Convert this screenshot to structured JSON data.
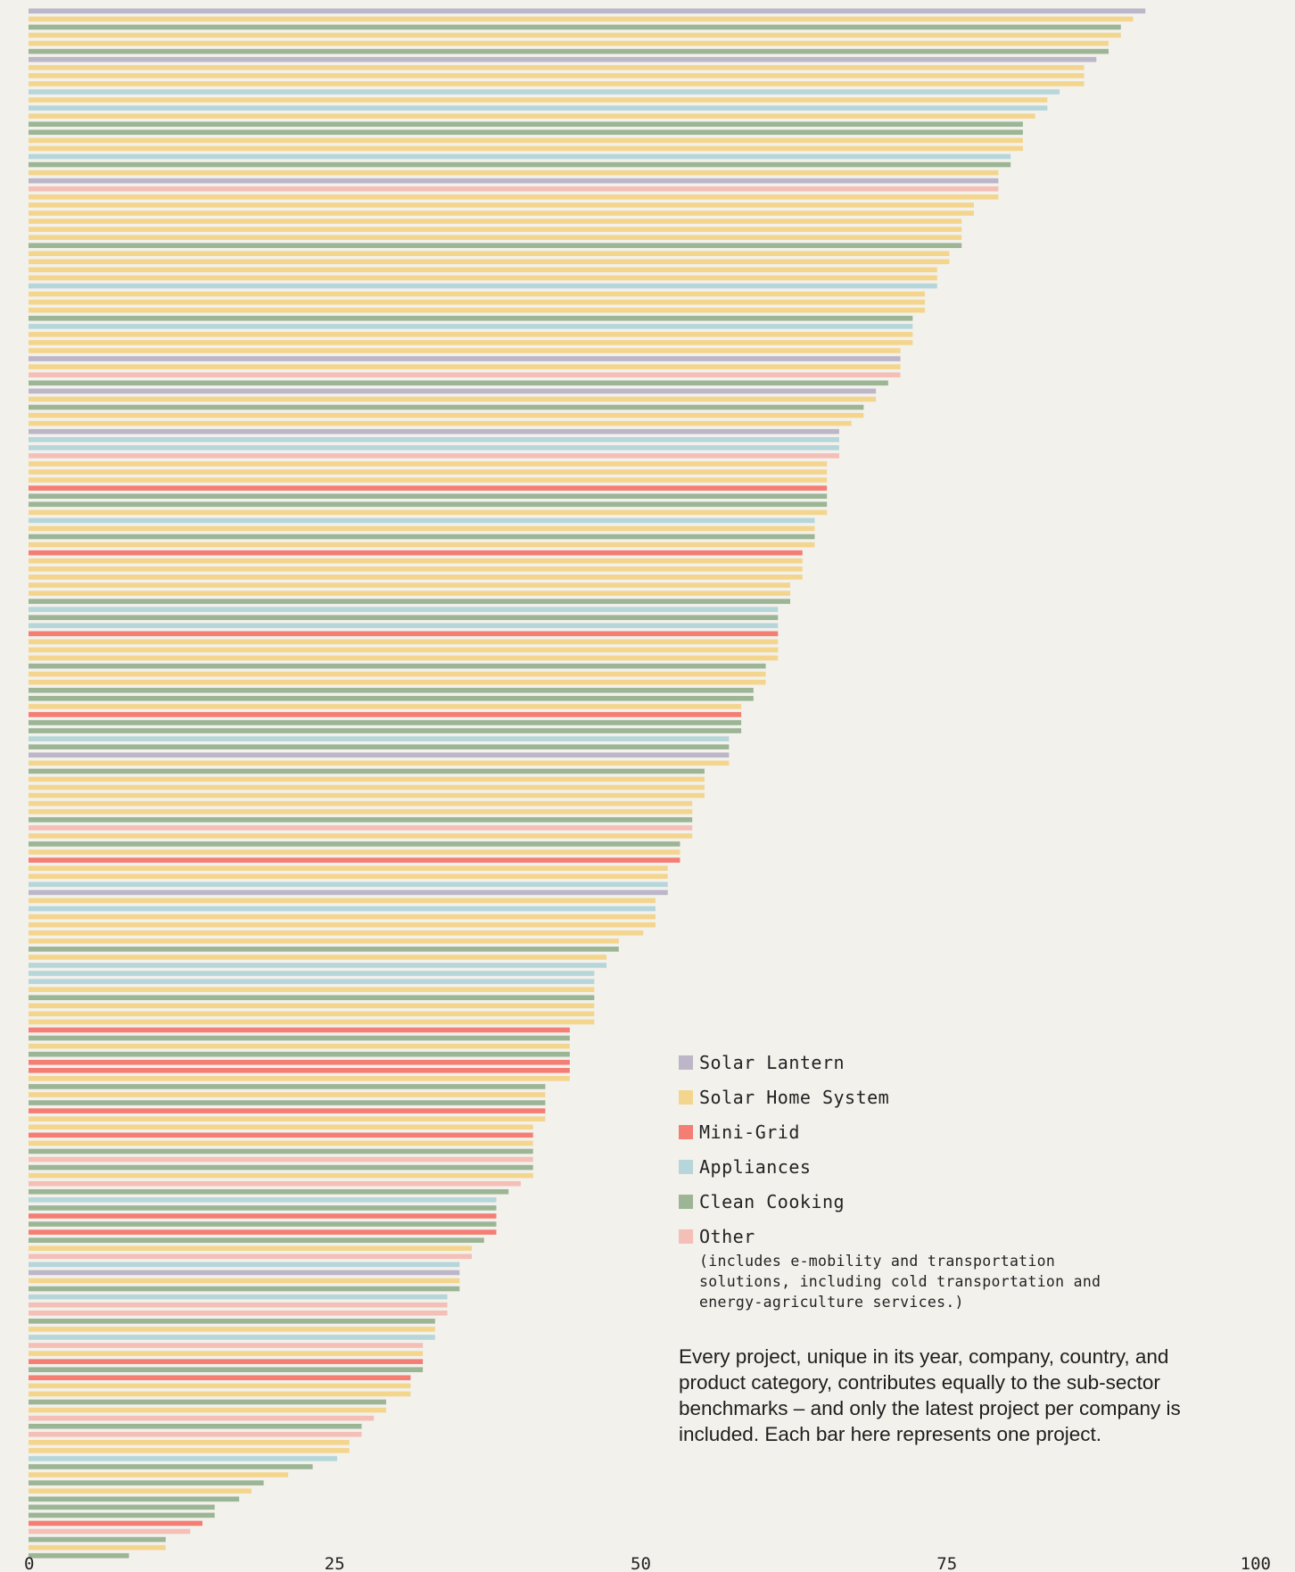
{
  "chart_data": {
    "type": "bar",
    "orientation": "horizontal",
    "title": "",
    "xlabel": "",
    "ylabel": "",
    "xlim": [
      0,
      100
    ],
    "x_ticks": [
      "0",
      "25",
      "50",
      "75",
      "100"
    ],
    "x_tick_values": [
      0,
      25,
      50,
      75,
      100
    ],
    "grid": false,
    "legend_position": "bottom-right",
    "categories": [
      {
        "name": "Solar Lantern",
        "key": "SL",
        "color": "#bcb6c8"
      },
      {
        "name": "Solar Home System",
        "key": "SHS",
        "color": "#f4d58e"
      },
      {
        "name": "Mini-Grid",
        "key": "MG",
        "color": "#f47d74"
      },
      {
        "name": "Appliances",
        "key": "AP",
        "color": "#b7d6da"
      },
      {
        "name": "Clean Cooking",
        "key": "CC",
        "color": "#9cb595"
      },
      {
        "name": "Other",
        "key": "OT",
        "color": "#f4bfb6"
      }
    ],
    "other_note": "(includes e-mobility and transportation solutions, including cold transportation and energy-agriculture services.)",
    "bars": [
      [
        "SL",
        91.2
      ],
      [
        "SHS",
        90.2
      ],
      [
        "CC",
        89.2
      ],
      [
        "SHS",
        89.2
      ],
      [
        "SHS",
        88.2
      ],
      [
        "CC",
        88.2
      ],
      [
        "SL",
        87.2
      ],
      [
        "SHS",
        86.2
      ],
      [
        "SHS",
        86.2
      ],
      [
        "SHS",
        86.2
      ],
      [
        "AP",
        84.2
      ],
      [
        "SHS",
        83.2
      ],
      [
        "AP",
        83.2
      ],
      [
        "SHS",
        82.2
      ],
      [
        "CC",
        81.2
      ],
      [
        "CC",
        81.2
      ],
      [
        "SHS",
        81.2
      ],
      [
        "SHS",
        81.2
      ],
      [
        "AP",
        80.2
      ],
      [
        "CC",
        80.2
      ],
      [
        "SHS",
        79.2
      ],
      [
        "SL",
        79.2
      ],
      [
        "OT",
        79.2
      ],
      [
        "SHS",
        79.2
      ],
      [
        "SHS",
        77.2
      ],
      [
        "SHS",
        77.2
      ],
      [
        "SHS",
        76.2
      ],
      [
        "SHS",
        76.2
      ],
      [
        "SHS",
        76.2
      ],
      [
        "CC",
        76.2
      ],
      [
        "SHS",
        75.2
      ],
      [
        "SHS",
        75.2
      ],
      [
        "SHS",
        74.2
      ],
      [
        "SHS",
        74.2
      ],
      [
        "AP",
        74.2
      ],
      [
        "SHS",
        73.2
      ],
      [
        "SHS",
        73.2
      ],
      [
        "SHS",
        73.2
      ],
      [
        "CC",
        72.2
      ],
      [
        "AP",
        72.2
      ],
      [
        "SHS",
        72.2
      ],
      [
        "SHS",
        72.2
      ],
      [
        "SHS",
        71.2
      ],
      [
        "SL",
        71.2
      ],
      [
        "SHS",
        71.2
      ],
      [
        "OT",
        71.2
      ],
      [
        "CC",
        70.2
      ],
      [
        "SL",
        69.2
      ],
      [
        "SHS",
        69.2
      ],
      [
        "CC",
        68.2
      ],
      [
        "SHS",
        68.2
      ],
      [
        "SHS",
        67.2
      ],
      [
        "SL",
        66.2
      ],
      [
        "AP",
        66.2
      ],
      [
        "AP",
        66.2
      ],
      [
        "OT",
        66.2
      ],
      [
        "SHS",
        65.2
      ],
      [
        "SHS",
        65.2
      ],
      [
        "SHS",
        65.2
      ],
      [
        "MG",
        65.2
      ],
      [
        "CC",
        65.2
      ],
      [
        "CC",
        65.2
      ],
      [
        "SHS",
        65.2
      ],
      [
        "AP",
        64.2
      ],
      [
        "SHS",
        64.2
      ],
      [
        "CC",
        64.2
      ],
      [
        "SHS",
        64.2
      ],
      [
        "MG",
        63.2
      ],
      [
        "SHS",
        63.2
      ],
      [
        "SHS",
        63.2
      ],
      [
        "SHS",
        63.2
      ],
      [
        "SHS",
        62.2
      ],
      [
        "SHS",
        62.2
      ],
      [
        "CC",
        62.2
      ],
      [
        "AP",
        61.2
      ],
      [
        "CC",
        61.2
      ],
      [
        "AP",
        61.2
      ],
      [
        "MG",
        61.2
      ],
      [
        "SHS",
        61.2
      ],
      [
        "SHS",
        61.2
      ],
      [
        "SHS",
        61.2
      ],
      [
        "CC",
        60.2
      ],
      [
        "SHS",
        60.2
      ],
      [
        "SHS",
        60.2
      ],
      [
        "CC",
        59.2
      ],
      [
        "CC",
        59.2
      ],
      [
        "SHS",
        58.2
      ],
      [
        "MG",
        58.2
      ],
      [
        "CC",
        58.2
      ],
      [
        "CC",
        58.2
      ],
      [
        "AP",
        57.2
      ],
      [
        "CC",
        57.2
      ],
      [
        "SL",
        57.2
      ],
      [
        "SHS",
        57.2
      ],
      [
        "CC",
        55.2
      ],
      [
        "SHS",
        55.2
      ],
      [
        "SHS",
        55.2
      ],
      [
        "SHS",
        55.2
      ],
      [
        "SHS",
        54.2
      ],
      [
        "SHS",
        54.2
      ],
      [
        "CC",
        54.2
      ],
      [
        "OT",
        54.2
      ],
      [
        "SHS",
        54.2
      ],
      [
        "CC",
        53.2
      ],
      [
        "SHS",
        53.2
      ],
      [
        "MG",
        53.2
      ],
      [
        "SHS",
        52.2
      ],
      [
        "SHS",
        52.2
      ],
      [
        "AP",
        52.2
      ],
      [
        "SL",
        52.2
      ],
      [
        "SHS",
        51.2
      ],
      [
        "AP",
        51.2
      ],
      [
        "SHS",
        51.2
      ],
      [
        "SHS",
        51.2
      ],
      [
        "SHS",
        50.2
      ],
      [
        "SHS",
        48.2
      ],
      [
        "CC",
        48.2
      ],
      [
        "SHS",
        47.2
      ],
      [
        "AP",
        47.2
      ],
      [
        "AP",
        46.2
      ],
      [
        "AP",
        46.2
      ],
      [
        "SHS",
        46.2
      ],
      [
        "CC",
        46.2
      ],
      [
        "SHS",
        46.2
      ],
      [
        "SHS",
        46.2
      ],
      [
        "SHS",
        46.2
      ],
      [
        "MG",
        44.2
      ],
      [
        "CC",
        44.2
      ],
      [
        "SHS",
        44.2
      ],
      [
        "CC",
        44.2
      ],
      [
        "MG",
        44.2
      ],
      [
        "MG",
        44.2
      ],
      [
        "SHS",
        44.2
      ],
      [
        "CC",
        42.2
      ],
      [
        "SHS",
        42.2
      ],
      [
        "CC",
        42.2
      ],
      [
        "MG",
        42.2
      ],
      [
        "SHS",
        42.2
      ],
      [
        "SHS",
        41.2
      ],
      [
        "MG",
        41.2
      ],
      [
        "SHS",
        41.2
      ],
      [
        "CC",
        41.2
      ],
      [
        "OT",
        41.2
      ],
      [
        "CC",
        41.2
      ],
      [
        "SHS",
        41.2
      ],
      [
        "OT",
        40.2
      ],
      [
        "CC",
        39.2
      ],
      [
        "AP",
        38.2
      ],
      [
        "CC",
        38.2
      ],
      [
        "MG",
        38.2
      ],
      [
        "CC",
        38.2
      ],
      [
        "MG",
        38.2
      ],
      [
        "CC",
        37.2
      ],
      [
        "SHS",
        36.2
      ],
      [
        "OT",
        36.2
      ],
      [
        "AP",
        35.2
      ],
      [
        "SL",
        35.2
      ],
      [
        "SHS",
        35.2
      ],
      [
        "CC",
        35.2
      ],
      [
        "AP",
        34.2
      ],
      [
        "OT",
        34.2
      ],
      [
        "OT",
        34.2
      ],
      [
        "CC",
        33.2
      ],
      [
        "SHS",
        33.2
      ],
      [
        "AP",
        33.2
      ],
      [
        "OT",
        32.2
      ],
      [
        "SHS",
        32.2
      ],
      [
        "MG",
        32.2
      ],
      [
        "CC",
        32.2
      ],
      [
        "MG",
        31.2
      ],
      [
        "SHS",
        31.2
      ],
      [
        "SHS",
        31.2
      ],
      [
        "CC",
        29.2
      ],
      [
        "SHS",
        29.2
      ],
      [
        "OT",
        28.2
      ],
      [
        "CC",
        27.2
      ],
      [
        "OT",
        27.2
      ],
      [
        "SHS",
        26.2
      ],
      [
        "SHS",
        26.2
      ],
      [
        "AP",
        25.2
      ],
      [
        "CC",
        23.2
      ],
      [
        "SHS",
        21.2
      ],
      [
        "CC",
        19.2
      ],
      [
        "SHS",
        18.2
      ],
      [
        "CC",
        17.2
      ],
      [
        "CC",
        15.2
      ],
      [
        "CC",
        15.2
      ],
      [
        "MG",
        14.2
      ],
      [
        "OT",
        13.2
      ],
      [
        "CC",
        11.2
      ],
      [
        "SHS",
        11.2
      ],
      [
        "CC",
        8.2
      ]
    ]
  },
  "description": "Every project, unique in its year, company, country, and product category, contributes equally to the sub-sector benchmarks – and only the latest project per company is included. Each bar here represents one project."
}
